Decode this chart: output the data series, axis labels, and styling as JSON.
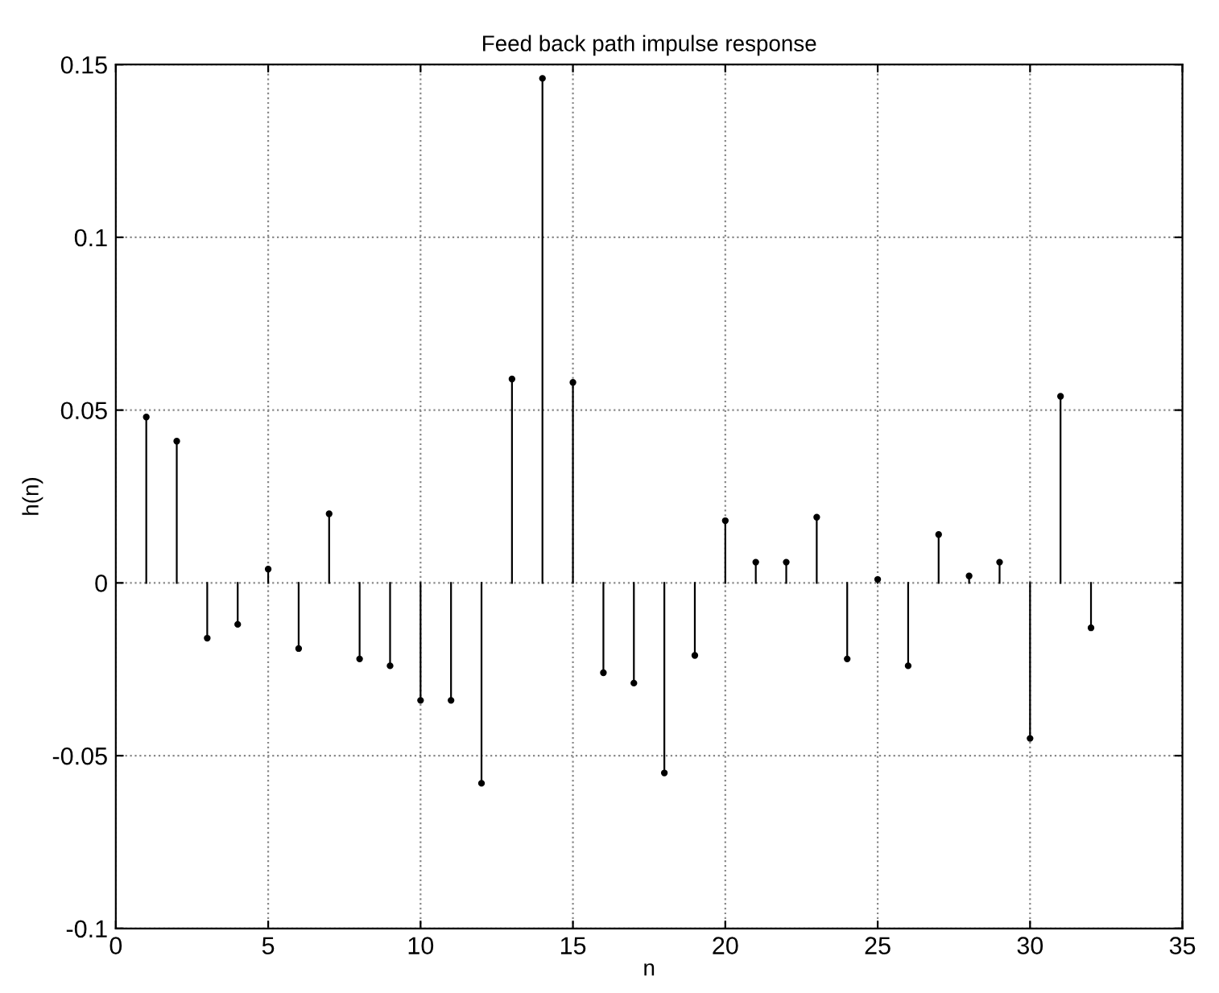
{
  "chart_data": {
    "type": "lollipop",
    "title": "Feed back path impulse response",
    "xlabel": "n",
    "ylabel": "h(n)",
    "x": [
      1,
      2,
      3,
      4,
      5,
      6,
      7,
      8,
      9,
      10,
      11,
      12,
      13,
      14,
      15,
      16,
      17,
      18,
      19,
      20,
      21,
      22,
      23,
      24,
      25,
      26,
      27,
      28,
      29,
      30,
      31,
      32
    ],
    "values": [
      0.048,
      0.041,
      -0.016,
      -0.012,
      0.004,
      -0.019,
      0.02,
      -0.022,
      -0.024,
      -0.034,
      -0.034,
      -0.058,
      0.059,
      0.146,
      0.058,
      -0.026,
      -0.029,
      -0.055,
      -0.021,
      0.018,
      0.006,
      0.006,
      0.019,
      -0.022,
      0.001,
      -0.024,
      0.014,
      0.002,
      0.006,
      -0.045,
      0.054,
      -0.013
    ],
    "color": "#000000",
    "marker": "circle",
    "grid": true,
    "xlim": [
      0,
      35
    ],
    "xticks": [
      0,
      5,
      10,
      15,
      20,
      25,
      30,
      35
    ],
    "ylim": [
      -0.1,
      0.15
    ],
    "yticks": [
      -0.1,
      -0.05,
      0,
      0.05,
      0.1,
      0.15
    ]
  }
}
